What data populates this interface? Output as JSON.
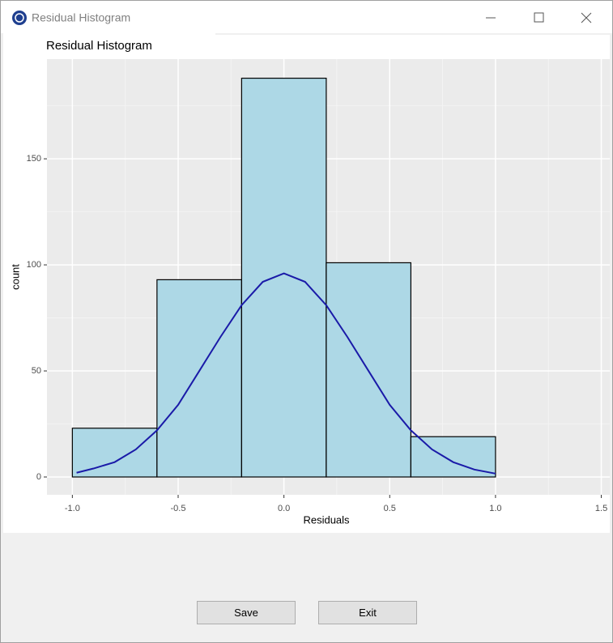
{
  "window": {
    "title": "Residual Histogram"
  },
  "chart_data": {
    "type": "histogram",
    "title": "Residual Histogram",
    "x_label": "Residuals",
    "y_label": "count",
    "bins": [
      -1.0,
      -0.6,
      -0.2,
      0.2,
      0.6,
      1.0,
      1.4
    ],
    "values": [
      23,
      93,
      188,
      101,
      19,
      0
    ],
    "color": "#add8e6",
    "edgecolor": "#000000",
    "xlim": [
      -1.12,
      1.54
    ],
    "ylim": [
      -8.4,
      197
    ],
    "xticks": [
      {
        "value": -1,
        "label": "-1.0"
      },
      -0.5,
      {
        "value": 0,
        "label": "0.0"
      },
      0.5,
      {
        "value": 1,
        "label": "1.0"
      },
      1.5
    ],
    "yticks": [
      0,
      50,
      100,
      150
    ],
    "xminor": [
      -0.75,
      -0.25,
      0.25,
      0.75,
      1.25
    ],
    "yminor": [
      25,
      75,
      125,
      175
    ],
    "grid": true,
    "overlay": {
      "type": "line",
      "color": "#1a1aa8",
      "x": [
        -0.98,
        -0.9,
        -0.8,
        -0.7,
        -0.6,
        -0.5,
        -0.4,
        -0.3,
        -0.2,
        -0.1,
        0.0,
        0.1,
        0.2,
        0.3,
        0.4,
        0.5,
        0.6,
        0.7,
        0.8,
        0.9,
        1.0
      ],
      "values": [
        2,
        4,
        7,
        13,
        22,
        34,
        50,
        66,
        81,
        92,
        96,
        92,
        81,
        66,
        50,
        34,
        22,
        13,
        7,
        3.5,
        1.6
      ]
    }
  },
  "buttons": [
    {
      "label": "Save"
    },
    {
      "label": "Exit"
    }
  ]
}
